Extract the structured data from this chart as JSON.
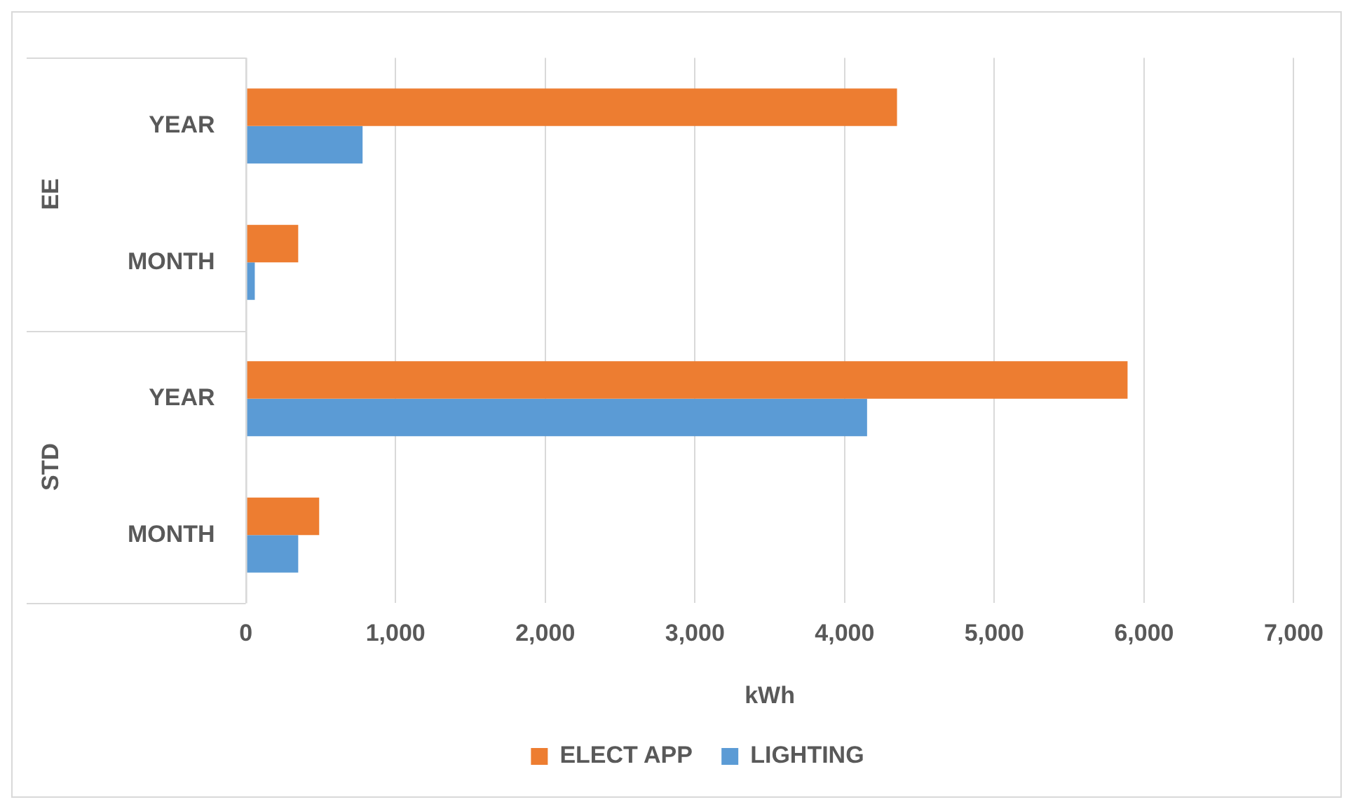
{
  "chart_data": {
    "type": "bar",
    "orientation": "horizontal",
    "xlabel": "kWh",
    "categories": [
      "YEAR",
      "MONTH",
      "YEAR",
      "MONTH"
    ],
    "series": [
      {
        "name": "ELECT APP",
        "color": "#ed7d31",
        "values": [
          4350,
          350,
          5890,
          490
        ]
      },
      {
        "name": "LIGHTING",
        "color": "#5b9bd5",
        "values": [
          780,
          60,
          4150,
          350
        ]
      }
    ],
    "xlim": [
      0,
      7000
    ],
    "xticks": [
      {
        "value": 0,
        "label": "0"
      },
      {
        "value": 1000,
        "label": "1,000"
      },
      {
        "value": 2000,
        "label": "2,000"
      },
      {
        "value": 3000,
        "label": "3,000"
      },
      {
        "value": 4000,
        "label": "4,000"
      },
      {
        "value": 5000,
        "label": "5,000"
      },
      {
        "value": 6000,
        "label": "6,000"
      },
      {
        "value": 7000,
        "label": "7,000"
      }
    ],
    "grid": "x",
    "legend": "bottom",
    "annotations": [
      "EE",
      "STD"
    ]
  }
}
